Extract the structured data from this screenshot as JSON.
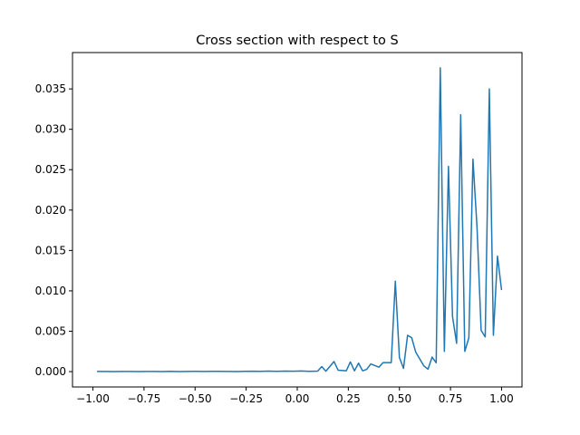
{
  "chart_data": {
    "type": "line",
    "title": "Cross section with respect to S",
    "xlabel": "",
    "ylabel": "",
    "xlim": [
      -1.1,
      1.1
    ],
    "ylim": [
      -0.0019,
      0.0395
    ],
    "grid": false,
    "legend": "none",
    "line_color": "#1f77b4",
    "x_ticks": [
      {
        "value": -1.0,
        "label": "−1.00"
      },
      {
        "value": -0.75,
        "label": "−0.75"
      },
      {
        "value": -0.5,
        "label": "−0.50"
      },
      {
        "value": -0.25,
        "label": "−0.25"
      },
      {
        "value": 0.0,
        "label": "0.00"
      },
      {
        "value": 0.25,
        "label": "0.25"
      },
      {
        "value": 0.5,
        "label": "0.50"
      },
      {
        "value": 0.75,
        "label": "0.75"
      },
      {
        "value": 1.0,
        "label": "1.00"
      }
    ],
    "y_ticks": [
      {
        "value": 0.0,
        "label": "0.000"
      },
      {
        "value": 0.005,
        "label": "0.005"
      },
      {
        "value": 0.01,
        "label": "0.010"
      },
      {
        "value": 0.015,
        "label": "0.015"
      },
      {
        "value": 0.02,
        "label": "0.020"
      },
      {
        "value": 0.025,
        "label": "0.025"
      },
      {
        "value": 0.03,
        "label": "0.030"
      },
      {
        "value": 0.035,
        "label": "0.035"
      }
    ],
    "series": [
      {
        "x": [
          -0.98,
          -0.94,
          -0.9,
          -0.86,
          -0.82,
          -0.78,
          -0.74,
          -0.7,
          -0.66,
          -0.62,
          -0.58,
          -0.54,
          -0.5,
          -0.46,
          -0.42,
          -0.38,
          -0.34,
          -0.3,
          -0.26,
          -0.22,
          -0.18,
          -0.14,
          -0.1,
          -0.06,
          -0.02,
          0.02,
          0.06,
          0.1,
          0.12,
          0.14,
          0.18,
          0.2,
          0.24,
          0.26,
          0.28,
          0.3,
          0.32,
          0.34,
          0.36,
          0.4,
          0.42,
          0.46,
          0.48,
          0.5,
          0.52,
          0.54,
          0.56,
          0.58,
          0.62,
          0.64,
          0.66,
          0.68,
          0.7,
          0.72,
          0.74,
          0.76,
          0.78,
          0.8,
          0.82,
          0.84,
          0.86,
          0.88,
          0.9,
          0.92,
          0.94,
          0.96,
          0.98,
          1.0
        ],
        "y": [
          2e-05,
          2e-05,
          1e-05,
          2e-05,
          2e-05,
          1e-05,
          2e-05,
          2e-05,
          1e-05,
          3e-05,
          1e-05,
          2e-05,
          3e-05,
          2e-05,
          4e-05,
          3e-05,
          2e-05,
          1e-05,
          3e-05,
          5e-05,
          4e-05,
          6e-05,
          3e-05,
          7e-05,
          5e-05,
          8e-05,
          4e-05,
          6e-05,
          0.00062,
          5e-05,
          0.00125,
          0.00018,
          0.0001,
          0.0012,
          0.0001,
          0.00105,
          0.0001,
          0.00028,
          0.00095,
          0.00055,
          0.00112,
          0.00112,
          0.0112,
          0.00175,
          0.0004,
          0.0045,
          0.0042,
          0.0024,
          0.0007,
          0.0003,
          0.0018,
          0.0011,
          0.0376,
          0.0025,
          0.0254,
          0.0068,
          0.0035,
          0.0318,
          0.0025,
          0.0042,
          0.0263,
          0.0178,
          0.0051,
          0.0043,
          0.035,
          0.0045,
          0.0143,
          0.0101
        ]
      }
    ]
  }
}
